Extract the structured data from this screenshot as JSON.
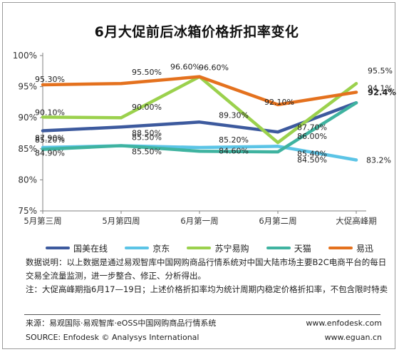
{
  "chart_data": {
    "type": "line",
    "title": "6月大促前后冰箱价格折扣率变化",
    "categories": [
      "5月第三周",
      "5月第四周",
      "6月第一周",
      "6月第二周",
      "大促高峰期"
    ],
    "y_ticks": [
      "75%",
      "80%",
      "85%",
      "90%",
      "95%",
      "100%"
    ],
    "ylim": [
      75,
      100
    ],
    "grid": false,
    "legend_position": "bottom",
    "series": [
      {
        "name": "国美在线",
        "color": "#3d5a9e",
        "values": [
          87.9,
          88.5,
          89.3,
          87.7,
          92.4
        ],
        "labels": [
          "87.90%",
          "88.50%",
          "89.30%",
          "87.70%",
          "92.4%"
        ]
      },
      {
        "name": "京东",
        "color": "#5bc4e6",
        "values": [
          85.2,
          85.5,
          85.2,
          85.4,
          83.2
        ],
        "labels": [
          "85.20%",
          "85.50%",
          "85.20%",
          "85.40%",
          "83.2%"
        ]
      },
      {
        "name": "苏宁易购",
        "color": "#9bd14d",
        "values": [
          90.1,
          90.0,
          96.6,
          86.0,
          95.5
        ],
        "labels": [
          "90.10%",
          "90.00%",
          "96.60%",
          "86.00%",
          "95.5%"
        ]
      },
      {
        "name": "天猫",
        "color": "#3fb3a0",
        "values": [
          84.9,
          85.5,
          84.6,
          84.5,
          92.4
        ],
        "labels": [
          "84.90%",
          "85.50%",
          "84.60%",
          "84.50%",
          ""
        ]
      },
      {
        "name": "易迅",
        "color": "#e4711e",
        "values": [
          95.3,
          95.5,
          96.6,
          92.1,
          94.1
        ],
        "labels": [
          "95.30%",
          "95.50%",
          "96.60%",
          "92.10%",
          "94.1%"
        ]
      }
    ]
  },
  "notes": {
    "line1": "数据说明：以上数据是通过易观智库中国网购商品行情系统对中国大陆市场主要B2C电商平台的每日交易全流量监测，进一步整合、修正、分析得出。",
    "line2": "注：大促高峰期指6月17—19日；上述价格折扣率均为统计周期内稳定价格折扣率，不包含限时特卖"
  },
  "source": {
    "cn": "来源：易观国际·易观智库·eOSS中国网购商品行情系统",
    "en": "SOURCE: Enfodesk © Analysys International",
    "url1": "www.enfodesk.com",
    "url2": "www.eguan.cn"
  }
}
